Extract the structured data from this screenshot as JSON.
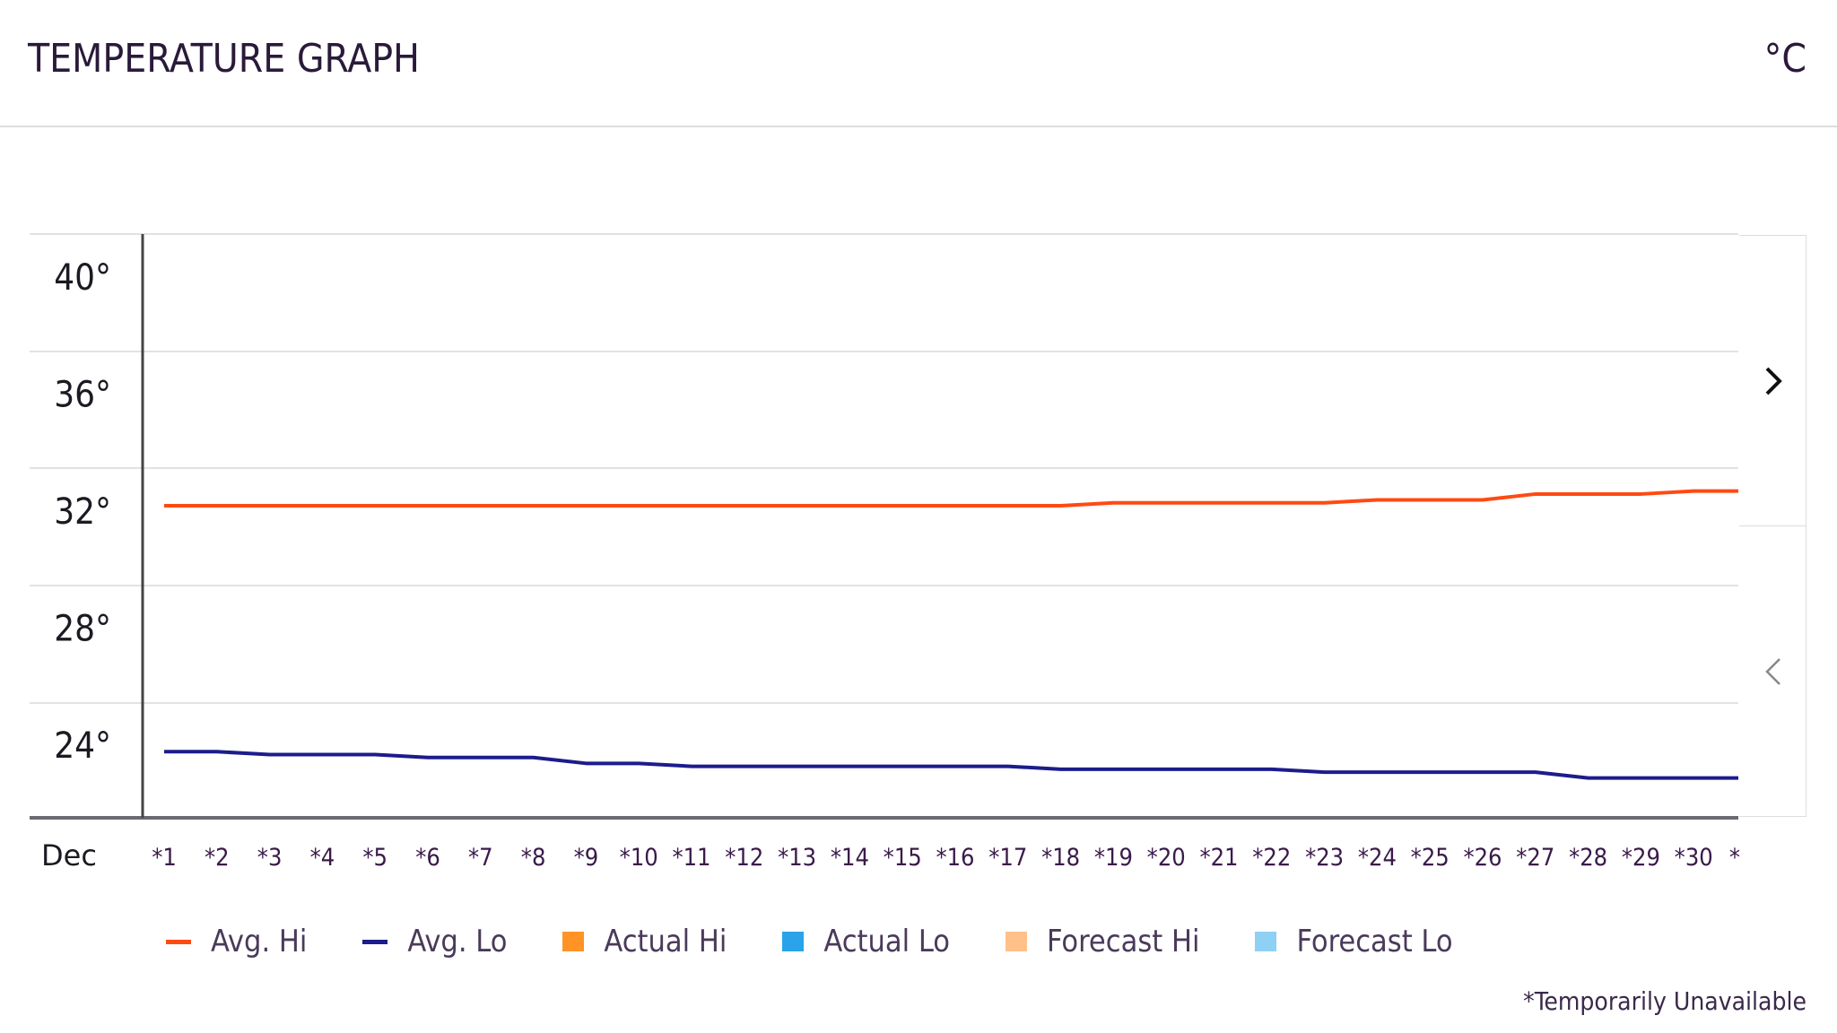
{
  "header": {
    "title": "TEMPERATURE GRAPH",
    "unit": "°C"
  },
  "nav": {
    "next_icon": "chevron-right-icon",
    "prev_icon": "chevron-left-icon"
  },
  "chart_data": {
    "type": "line",
    "title": "",
    "x_prefix_label": "Dec",
    "categories": [
      "*1",
      "*2",
      "*3",
      "*4",
      "*5",
      "*6",
      "*7",
      "*8",
      "*9",
      "*10",
      "*11",
      "*12",
      "*13",
      "*14",
      "*15",
      "*16",
      "*17",
      "*18",
      "*19",
      "*20",
      "*21",
      "*22",
      "*23",
      "*24",
      "*25",
      "*26",
      "*27",
      "*28",
      "*29",
      "*30",
      "*"
    ],
    "yticks": [
      "40°",
      "36°",
      "32°",
      "28°",
      "24°"
    ],
    "ytick_values": [
      40,
      36,
      32,
      28,
      24
    ],
    "grid": true,
    "series": [
      {
        "name": "Avg. Hi",
        "color": "#ff4a12",
        "values": [
          32,
          32,
          32,
          32,
          32,
          32,
          32,
          32,
          32,
          32,
          32,
          32,
          32,
          32,
          32,
          32,
          32,
          32,
          32.1,
          32.1,
          32.1,
          32.1,
          32.1,
          32.2,
          32.2,
          32.2,
          32.4,
          32.4,
          32.4,
          32.5,
          32.5
        ]
      },
      {
        "name": "Avg. Lo",
        "color": "#1c1c8c",
        "values": [
          23.6,
          23.6,
          23.5,
          23.5,
          23.5,
          23.4,
          23.4,
          23.4,
          23.2,
          23.2,
          23.1,
          23.1,
          23.1,
          23.1,
          23.1,
          23.1,
          23.1,
          23.0,
          23.0,
          23.0,
          23.0,
          23.0,
          22.9,
          22.9,
          22.9,
          22.9,
          22.9,
          22.7,
          22.7,
          22.7,
          22.7
        ]
      }
    ],
    "legend": [
      {
        "label": "Avg. Hi",
        "color": "#ff4a12",
        "kind": "line"
      },
      {
        "label": "Avg. Lo",
        "color": "#1c1c8c",
        "kind": "line"
      },
      {
        "label": "Actual Hi",
        "color": "#ff9326",
        "kind": "box"
      },
      {
        "label": "Actual Lo",
        "color": "#2aa3e8",
        "kind": "box"
      },
      {
        "label": "Forecast Hi",
        "color": "#ffc08a",
        "kind": "box"
      },
      {
        "label": "Forecast Lo",
        "color": "#8fd0f5",
        "kind": "box"
      }
    ],
    "legend_position": "bottom",
    "footnote": "*Temporarily Unavailable"
  }
}
